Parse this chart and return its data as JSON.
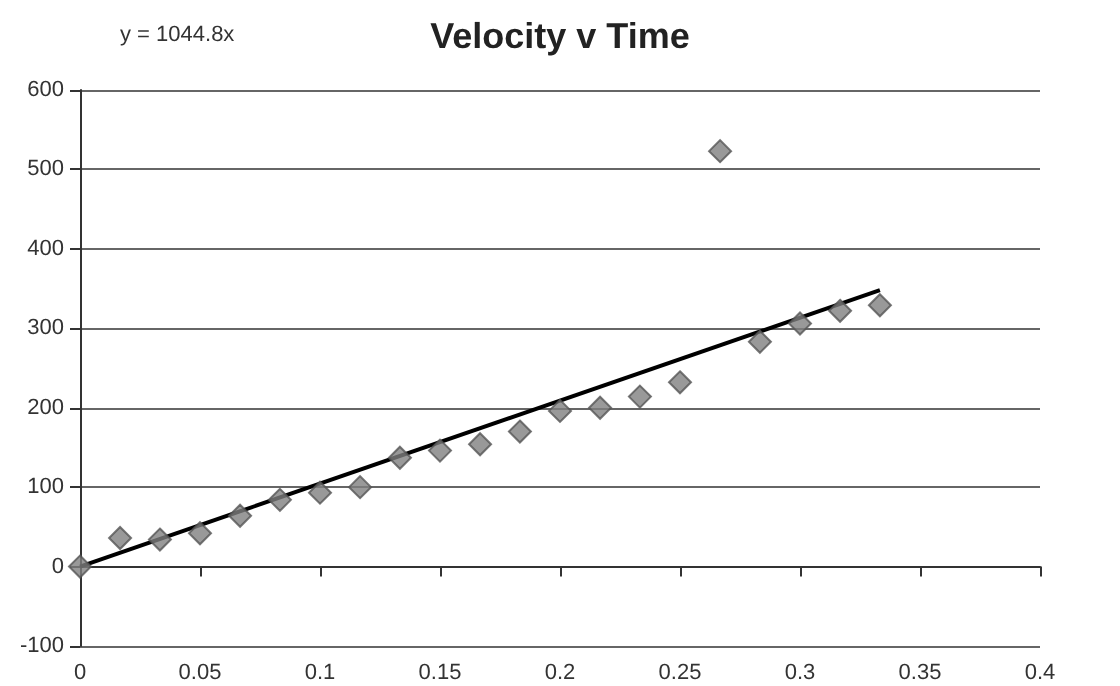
{
  "chart_data": {
    "type": "scatter",
    "title": "Velocity v Time",
    "annotations": [
      "y = 1044.8x"
    ],
    "series": [
      {
        "color": "#7f7f7f",
        "x": [
          0,
          0.0167,
          0.0333,
          0.05,
          0.0667,
          0.0833,
          0.1,
          0.1167,
          0.1333,
          0.15,
          0.1667,
          0.1833,
          0.2,
          0.2167,
          0.2333,
          0.25,
          0.2667,
          0.2833,
          0.3,
          0.3167,
          0.3333
        ],
        "values": [
          0,
          36,
          34,
          42,
          64,
          84,
          93,
          100,
          137,
          146,
          154,
          170,
          196,
          200,
          214,
          232,
          523,
          283,
          306,
          322,
          329
        ]
      },
      {
        "type": "line",
        "color": "#000000",
        "x": [
          0,
          0.3333
        ],
        "values": [
          0,
          348
        ],
        "marker": "none"
      }
    ],
    "xlim": [
      0,
      0.4
    ],
    "xticks": [
      0,
      0.05,
      0.1,
      0.15,
      0.2,
      0.25,
      0.3,
      0.35,
      0.4
    ],
    "ylim": [
      -100,
      600
    ],
    "yticks": [
      -100,
      0,
      100,
      200,
      300,
      400,
      500,
      600
    ],
    "grid": "y",
    "marker": "diamond"
  }
}
